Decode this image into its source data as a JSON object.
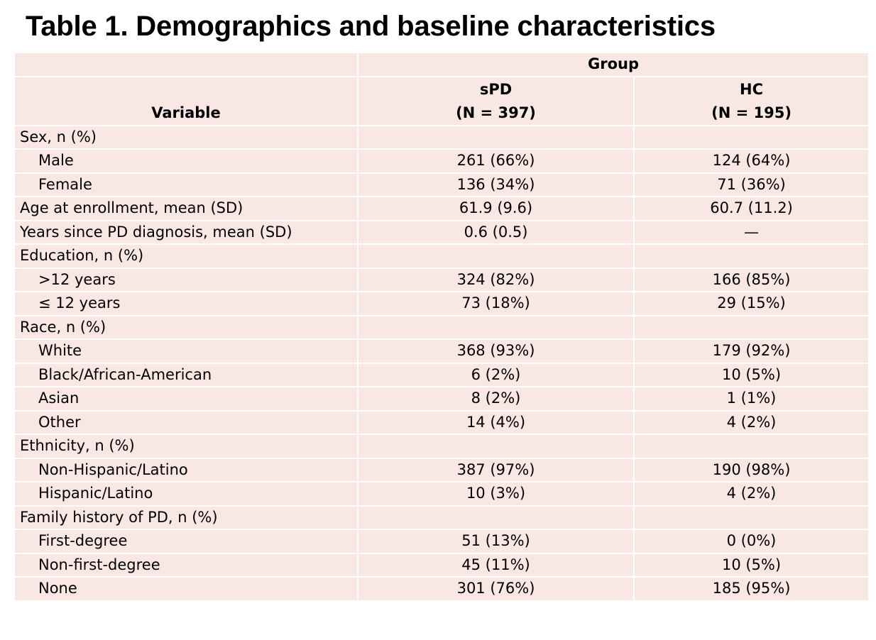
{
  "title": "Table 1. Demographics and baseline characteristics",
  "header": {
    "group": "Group",
    "variable": "Variable",
    "col1_name": "sPD",
    "col1_n": "(N = 397)",
    "col2_name": "HC",
    "col2_n": "(N = 195)"
  },
  "rows": [
    {
      "label": "Sex, n (%)",
      "spd": "",
      "hc": ""
    },
    {
      "label": "Male",
      "spd": "261 (66%)",
      "hc": "124 (64%)"
    },
    {
      "label": "Female",
      "spd": "136 (34%)",
      "hc": "71 (36%)"
    },
    {
      "label": "Age at enrollment, mean (SD)",
      "spd": "61.9 (9.6)",
      "hc": "60.7 (11.2)"
    },
    {
      "label": "Years since PD diagnosis, mean (SD)",
      "spd": "0.6 (0.5)",
      "hc": "—"
    },
    {
      "label": "Education, n (%)",
      "spd": "",
      "hc": ""
    },
    {
      "label": ">12 years",
      "spd": "324 (82%)",
      "hc": "166 (85%)"
    },
    {
      "label": "≤ 12 years",
      "spd": "73 (18%)",
      "hc": "29 (15%)"
    },
    {
      "label": "Race, n (%)",
      "spd": "",
      "hc": ""
    },
    {
      "label": "White",
      "spd": "368 (93%)",
      "hc": "179 (92%)"
    },
    {
      "label": "Black/African-American",
      "spd": "6 (2%)",
      "hc": "10 (5%)"
    },
    {
      "label": "Asian",
      "spd": "8 (2%)",
      "hc": "1 (1%)"
    },
    {
      "label": "Other",
      "spd": "14 (4%)",
      "hc": "4 (2%)"
    },
    {
      "label": "Ethnicity, n (%)",
      "spd": "",
      "hc": ""
    },
    {
      "label": "Non-Hispanic/Latino",
      "spd": "387 (97%)",
      "hc": "190 (98%)"
    },
    {
      "label": "Hispanic/Latino",
      "spd": "10 (3%)",
      "hc": "4 (2%)"
    },
    {
      "label": "Family history of PD, n (%)",
      "spd": "",
      "hc": ""
    },
    {
      "label": "First-degree",
      "spd": "51 (13%)",
      "hc": "0 (0%)"
    },
    {
      "label": "Non-first-degree",
      "spd": "45 (11%)",
      "hc": "10 (5%)"
    },
    {
      "label": "None",
      "spd": "301 (76%)",
      "hc": "185 (95%)"
    }
  ],
  "colors": {
    "cell_background": "#f9e7e4",
    "cell_border": "#ffffff",
    "text": "#000000"
  }
}
